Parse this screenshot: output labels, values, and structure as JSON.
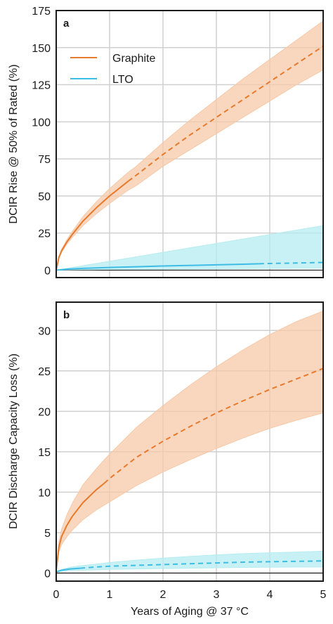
{
  "figure": {
    "x_axis_label": "Years of Aging @ 37 °C"
  },
  "chart_data": [
    {
      "type": "line",
      "panel_label": "a",
      "xlabel": "Years of Aging @ 37 °C",
      "ylabel": "DCIR Rise @ 50% of Rated (%)",
      "xlim": [
        0,
        5
      ],
      "ylim": [
        -5,
        175
      ],
      "x_ticks": [
        0,
        1,
        2,
        3,
        4,
        5
      ],
      "x_tick_labels": [
        "0",
        "1",
        "2",
        "3",
        "4",
        "5"
      ],
      "y_ticks": [
        0,
        25,
        50,
        75,
        100,
        125,
        150,
        175
      ],
      "y_tick_labels": [
        "0",
        "25",
        "50",
        "75",
        "100",
        "125",
        "150",
        "175"
      ],
      "grid": true,
      "zero_line": true,
      "legend": {
        "placement": "top-left",
        "entries": [
          "Graphite",
          "LTO"
        ]
      },
      "series": [
        {
          "name": "Graphite",
          "color": "#e87a2d",
          "band_color": "#f6c9a8",
          "solid_until_x": 1.35,
          "x": [
            0,
            0.05,
            0.1,
            0.2,
            0.3,
            0.5,
            0.75,
            1.0,
            1.35,
            1.5,
            2.0,
            2.5,
            3.0,
            3.5,
            4.0,
            4.5,
            5.0
          ],
          "y": [
            0,
            8.5,
            13,
            19,
            24,
            33,
            42,
            50,
            60,
            64,
            78,
            91,
            103,
            115,
            127,
            139,
            151
          ],
          "y_lower": [
            0,
            8,
            12,
            17.5,
            22,
            30,
            38,
            45,
            54,
            57,
            70,
            81,
            92,
            103,
            114,
            125,
            135
          ],
          "y_upper": [
            0,
            9,
            14,
            20.5,
            26,
            36,
            46,
            55,
            66,
            70,
            86,
            101,
            115,
            129,
            142,
            155,
            168
          ]
        },
        {
          "name": "LTO",
          "color": "#3dbde6",
          "band_color": "#b5ecf1",
          "solid_until_x": 3.8,
          "x": [
            0,
            0.25,
            0.5,
            1.0,
            1.5,
            2.0,
            2.5,
            3.0,
            3.5,
            3.8,
            4.0,
            4.5,
            5.0
          ],
          "y": [
            0,
            0.8,
            1.2,
            1.8,
            2.3,
            2.8,
            3.2,
            3.6,
            4.0,
            4.3,
            4.5,
            4.8,
            5.2
          ],
          "y_lower": [
            0,
            0.2,
            0.3,
            0.5,
            0.6,
            0.7,
            0.8,
            0.9,
            1.0,
            1.1,
            1.1,
            1.2,
            1.3
          ],
          "y_upper": [
            0,
            1.5,
            3,
            6,
            9,
            12,
            15,
            18,
            21,
            22.8,
            24,
            27,
            30
          ]
        }
      ]
    },
    {
      "type": "line",
      "panel_label": "b",
      "xlabel": "Years of Aging @ 37 °C",
      "ylabel": "DCIR Discharge Capacity Loss (%)",
      "xlim": [
        0,
        5
      ],
      "ylim": [
        -1,
        33.5
      ],
      "x_ticks": [
        0,
        1,
        2,
        3,
        4,
        5
      ],
      "x_tick_labels": [
        "0",
        "1",
        "2",
        "3",
        "4",
        "5"
      ],
      "y_ticks": [
        0,
        5,
        10,
        15,
        20,
        25,
        30
      ],
      "y_tick_labels": [
        "0",
        "5",
        "10",
        "15",
        "20",
        "25",
        "30"
      ],
      "grid": true,
      "zero_line": true,
      "series": [
        {
          "name": "Graphite",
          "color": "#e87a2d",
          "band_color": "#f6c9a8",
          "solid_until_x": 0.9,
          "x": [
            0,
            0.05,
            0.1,
            0.2,
            0.3,
            0.5,
            0.75,
            0.9,
            1.0,
            1.5,
            2.0,
            2.5,
            3.0,
            3.5,
            4.0,
            4.5,
            5.0
          ],
          "y": [
            0.3,
            3.2,
            4.5,
            5.9,
            7.0,
            8.7,
            10.3,
            11.1,
            11.7,
            14.3,
            16.3,
            18.1,
            19.8,
            21.3,
            22.7,
            24.0,
            25.3
          ],
          "y_lower": [
            0.3,
            2.6,
            3.5,
            4.5,
            5.3,
            6.6,
            7.8,
            8.4,
            8.8,
            10.8,
            12.5,
            14.0,
            15.4,
            16.7,
            17.9,
            18.9,
            19.8
          ],
          "y_upper": [
            0.3,
            3.8,
            5.4,
            7.2,
            8.6,
            10.9,
            12.9,
            14.0,
            14.7,
            18.0,
            20.7,
            23.2,
            25.5,
            27.6,
            29.5,
            31.1,
            32.4
          ]
        },
        {
          "name": "LTO",
          "color": "#3dbde6",
          "band_color": "#b5ecf1",
          "solid_until_x": 0.45,
          "x": [
            0,
            0.1,
            0.25,
            0.45,
            0.75,
            1.0,
            1.5,
            2.0,
            2.5,
            3.0,
            3.5,
            4.0,
            4.5,
            5.0
          ],
          "y": [
            0.15,
            0.35,
            0.5,
            0.6,
            0.75,
            0.85,
            0.95,
            1.05,
            1.15,
            1.25,
            1.35,
            1.4,
            1.45,
            1.5
          ],
          "y_lower": [
            0.1,
            0.2,
            0.3,
            0.35,
            0.4,
            0.45,
            0.5,
            0.55,
            0.6,
            0.65,
            0.7,
            0.72,
            0.74,
            0.75
          ],
          "y_upper": [
            0.2,
            0.45,
            0.7,
            0.9,
            1.1,
            1.3,
            1.6,
            1.85,
            2.05,
            2.25,
            2.4,
            2.5,
            2.6,
            2.7
          ]
        }
      ]
    }
  ]
}
